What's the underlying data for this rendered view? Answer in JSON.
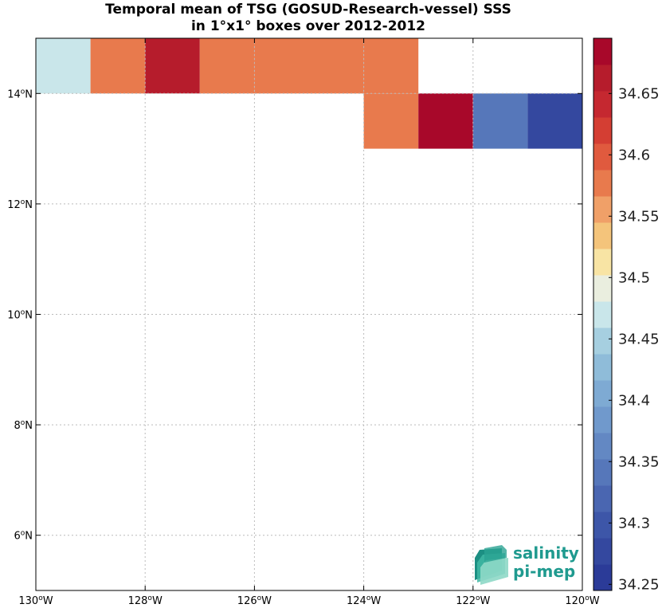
{
  "chart_data": {
    "type": "heatmap",
    "title": "Temporal mean of TSG (GOSUD-Research-vessel) SSS",
    "subtitle": "in 1°x1° boxes over 2012-2012",
    "xlim": [
      -130,
      -120
    ],
    "ylim": [
      5,
      15
    ],
    "grid": true,
    "x_ticks": [
      {
        "value": -130,
        "deg": "130",
        "hemi": "W"
      },
      {
        "value": -128,
        "deg": "128",
        "hemi": "W"
      },
      {
        "value": -126,
        "deg": "126",
        "hemi": "W"
      },
      {
        "value": -124,
        "deg": "124",
        "hemi": "W"
      },
      {
        "value": -122,
        "deg": "122",
        "hemi": "W"
      },
      {
        "value": -120,
        "deg": "120",
        "hemi": "W"
      }
    ],
    "y_ticks": [
      {
        "value": 6,
        "deg": "6",
        "hemi": "N"
      },
      {
        "value": 8,
        "deg": "8",
        "hemi": "N"
      },
      {
        "value": 10,
        "deg": "10",
        "hemi": "N"
      },
      {
        "value": 12,
        "deg": "12",
        "hemi": "N"
      },
      {
        "value": 14,
        "deg": "14",
        "hemi": "N"
      }
    ],
    "cells": [
      {
        "lon": -130,
        "lat": 14,
        "value": 34.47
      },
      {
        "lon": -129,
        "lat": 14,
        "value": 34.57
      },
      {
        "lon": -128,
        "lat": 14,
        "value": 34.67
      },
      {
        "lon": -127,
        "lat": 14,
        "value": 34.57
      },
      {
        "lon": -126,
        "lat": 14,
        "value": 34.57
      },
      {
        "lon": -125,
        "lat": 14,
        "value": 34.57
      },
      {
        "lon": -124,
        "lat": 14,
        "value": 34.57
      },
      {
        "lon": -124,
        "lat": 13,
        "value": 34.57
      },
      {
        "lon": -123,
        "lat": 13,
        "value": 34.69
      },
      {
        "lon": -122,
        "lat": 13,
        "value": 34.35
      },
      {
        "lon": -121,
        "lat": 13,
        "value": 34.27
      }
    ],
    "colorbar": {
      "min": 34.245,
      "max": 34.695,
      "ticks": [
        "34.25",
        "34.3",
        "34.35",
        "34.4",
        "34.45",
        "34.5",
        "34.55",
        "34.6",
        "34.65"
      ],
      "colors": [
        "#2b3b98",
        "#34489f",
        "#3d56a8",
        "#4a66b1",
        "#5677ba",
        "#6388c3",
        "#7099cc",
        "#7eaad3",
        "#8fbcd9",
        "#a6cfe0",
        "#c9e6ea",
        "#eaeedf",
        "#f8e4a4",
        "#f4c47b",
        "#f0a068",
        "#e87a4d",
        "#e05a3e",
        "#d43e33",
        "#c52830",
        "#b61c2c",
        "#a8082a"
      ]
    }
  },
  "logo": {
    "line1": "salinity",
    "line2": "pi-mep"
  },
  "colors": {
    "logo_text": "#1f9a8f",
    "grid": "#bbbbbb"
  }
}
